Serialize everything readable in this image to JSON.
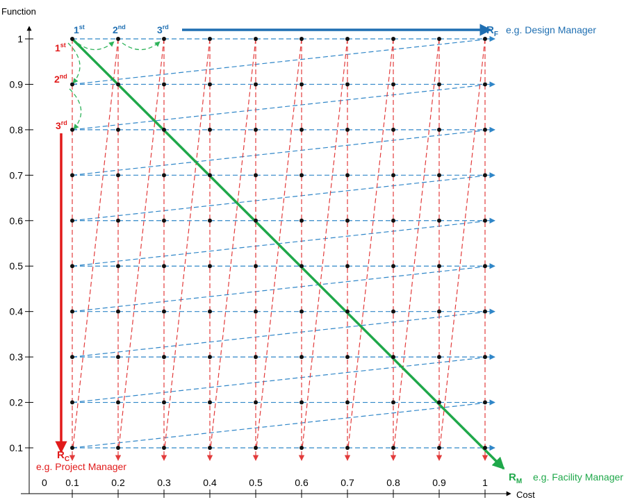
{
  "axes": {
    "y_title": "Function",
    "x_title": "Cost",
    "origin_label": "0",
    "y_ticks": [
      "1",
      "0.9",
      "0.8",
      "0.7",
      "0.6",
      "0.5",
      "0.4",
      "0.3",
      "0.2",
      "0.1"
    ],
    "x_ticks": [
      "0.1",
      "0.2",
      "0.3",
      "0.4",
      "0.5",
      "0.6",
      "0.7",
      "0.8",
      "0.9",
      "1"
    ]
  },
  "grid": {
    "x_values": [
      0.1,
      0.2,
      0.3,
      0.4,
      0.5,
      0.6,
      0.7,
      0.8,
      0.9,
      1.0
    ],
    "y_values": [
      1.0,
      0.9,
      0.8,
      0.7,
      0.6,
      0.5,
      0.4,
      0.3,
      0.2,
      0.1
    ]
  },
  "routes": {
    "function": {
      "letter": "R",
      "subscript": "F",
      "role": "e.g. Design Manager",
      "color": "#1f6fb2",
      "order_labels": [
        {
          "base": "1",
          "sup": "st"
        },
        {
          "base": "2",
          "sup": "nd"
        },
        {
          "base": "3",
          "sup": "rd"
        }
      ]
    },
    "cost": {
      "letter": "R",
      "subscript": "C",
      "role": "e.g. Project Manager",
      "color": "#e11a1a",
      "order_labels": [
        {
          "base": "1",
          "sup": "st"
        },
        {
          "base": "2",
          "sup": "nd"
        },
        {
          "base": "3",
          "sup": "rd"
        }
      ]
    },
    "mixed": {
      "letter": "R",
      "subscript": "M",
      "role": "e.g. Facility Manager",
      "color": "#1fa84a"
    }
  },
  "colors": {
    "blue_dashed": "#2f86c8",
    "red_dashed": "#e23b3b",
    "green": "#1fa84a",
    "green_dashed": "#2fb35a",
    "dot": "#111111"
  }
}
